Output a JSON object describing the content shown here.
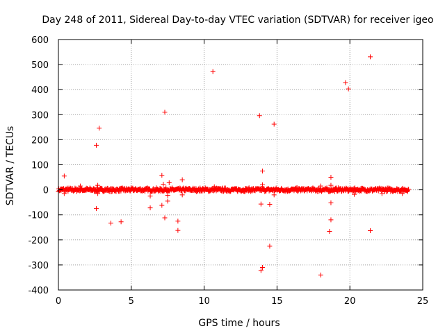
{
  "chart_data": {
    "type": "scatter",
    "title": "Day 248 of 2011, Sidereal Day-to-day VTEC variation (SDTVAR) for receiver igeo",
    "xlabel": "GPS time / hours",
    "ylabel": "SDTVAR / TECUs",
    "xlim": [
      0,
      25
    ],
    "ylim": [
      -400,
      600
    ],
    "xticks": [
      0,
      5,
      10,
      15,
      20,
      25
    ],
    "yticks": [
      -400,
      -300,
      -200,
      -100,
      0,
      100,
      200,
      300,
      400,
      500,
      600
    ],
    "grid": true,
    "marker": "+",
    "color": "#ff0000",
    "dense_band": {
      "x_start": 0,
      "x_end": 24,
      "y_min": -8,
      "y_max": 8
    },
    "outliers": [
      {
        "x": 0.4,
        "y": 55
      },
      {
        "x": 0.4,
        "y": -15
      },
      {
        "x": 1.5,
        "y": 15
      },
      {
        "x": 2.6,
        "y": 178
      },
      {
        "x": 2.8,
        "y": 246
      },
      {
        "x": 2.6,
        "y": -75
      },
      {
        "x": 2.7,
        "y": -15
      },
      {
        "x": 2.7,
        "y": 18
      },
      {
        "x": 3.6,
        "y": -133
      },
      {
        "x": 4.3,
        "y": -128
      },
      {
        "x": 6.3,
        "y": -72
      },
      {
        "x": 6.3,
        "y": -25
      },
      {
        "x": 7.1,
        "y": 58
      },
      {
        "x": 7.2,
        "y": 22
      },
      {
        "x": 7.1,
        "y": -62
      },
      {
        "x": 7.3,
        "y": 310
      },
      {
        "x": 7.3,
        "y": -112
      },
      {
        "x": 7.5,
        "y": -45
      },
      {
        "x": 7.5,
        "y": -22
      },
      {
        "x": 7.6,
        "y": 28
      },
      {
        "x": 8.2,
        "y": -125
      },
      {
        "x": 8.2,
        "y": -162
      },
      {
        "x": 8.5,
        "y": 40
      },
      {
        "x": 8.5,
        "y": -20
      },
      {
        "x": 10.6,
        "y": 472
      },
      {
        "x": 10.7,
        "y": 12
      },
      {
        "x": 13.8,
        "y": 296
      },
      {
        "x": 14.0,
        "y": 75
      },
      {
        "x": 14.0,
        "y": 20
      },
      {
        "x": 13.9,
        "y": -57
      },
      {
        "x": 14.0,
        "y": -310
      },
      {
        "x": 13.9,
        "y": -322
      },
      {
        "x": 14.5,
        "y": -58
      },
      {
        "x": 14.5,
        "y": -225
      },
      {
        "x": 14.8,
        "y": 262
      },
      {
        "x": 14.8,
        "y": -20
      },
      {
        "x": 18.0,
        "y": -340
      },
      {
        "x": 18.0,
        "y": 15
      },
      {
        "x": 18.7,
        "y": 50
      },
      {
        "x": 18.7,
        "y": 18
      },
      {
        "x": 18.7,
        "y": -52
      },
      {
        "x": 18.7,
        "y": -120
      },
      {
        "x": 18.6,
        "y": -166
      },
      {
        "x": 19.7,
        "y": 428
      },
      {
        "x": 19.9,
        "y": 403
      },
      {
        "x": 20.3,
        "y": -18
      },
      {
        "x": 21.4,
        "y": 531
      },
      {
        "x": 21.4,
        "y": -163
      },
      {
        "x": 22.2,
        "y": -15
      },
      {
        "x": 23.6,
        "y": -15
      }
    ]
  }
}
